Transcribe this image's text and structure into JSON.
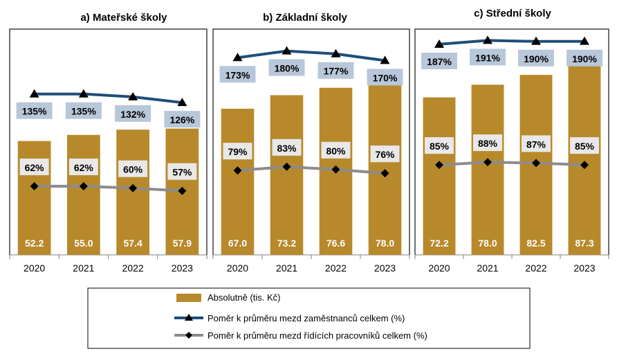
{
  "chart_data": [
    {
      "type": "bar",
      "title": "a) Mateřské školy",
      "categories": [
        "2020",
        "2021",
        "2022",
        "2023"
      ],
      "values": [
        52.2,
        55.0,
        57.4,
        57.9
      ],
      "value_labels": [
        "52.2",
        "55.0",
        "57.4",
        "57.9"
      ],
      "ratio_employees": [
        135,
        135,
        132,
        126
      ],
      "ratio_employees_labels": [
        "135%",
        "135%",
        "132%",
        "126%"
      ],
      "ratio_managers": [
        62,
        62,
        60,
        57
      ],
      "ratio_managers_labels": [
        "62%",
        "62%",
        "60%",
        "57%"
      ]
    },
    {
      "type": "bar",
      "title": "b) Základní školy",
      "categories": [
        "2020",
        "2021",
        "2022",
        "2023"
      ],
      "values": [
        67.0,
        73.2,
        76.6,
        78.0
      ],
      "value_labels": [
        "67.0",
        "73.2",
        "76.6",
        "78.0"
      ],
      "ratio_employees": [
        173,
        180,
        177,
        170
      ],
      "ratio_employees_labels": [
        "173%",
        "180%",
        "177%",
        "170%"
      ],
      "ratio_managers": [
        79,
        83,
        80,
        76
      ],
      "ratio_managers_labels": [
        "79%",
        "83%",
        "80%",
        "76%"
      ]
    },
    {
      "type": "bar",
      "title": "c) Střední školy",
      "categories": [
        "2020",
        "2021",
        "2022",
        "2023"
      ],
      "values": [
        72.2,
        78.0,
        82.5,
        87.3
      ],
      "value_labels": [
        "72.2",
        "78.0",
        "82.5",
        "87.3"
      ],
      "ratio_employees": [
        187,
        191,
        190,
        190
      ],
      "ratio_employees_labels": [
        "187%",
        "191%",
        "190%",
        "190%"
      ],
      "ratio_managers": [
        85,
        88,
        87,
        85
      ],
      "ratio_managers_labels": [
        "85%",
        "88%",
        "87%",
        "85%"
      ]
    }
  ],
  "legend": {
    "bars": "Absolutně (tis. Kč)",
    "line_employees": "Poměr k průměru mezd zaměstnanců celkem (%)",
    "line_managers": "Poměr k průměru mezd řídících pracovníků celkem (%)"
  },
  "colors": {
    "bar": "#b8892b",
    "line_employees": "#1f4e79",
    "line_managers": "#8c8c8c",
    "label_box_employees": "#b8c7d9",
    "label_box_managers": "#e8e8e8",
    "value_text": "#ffffff"
  }
}
